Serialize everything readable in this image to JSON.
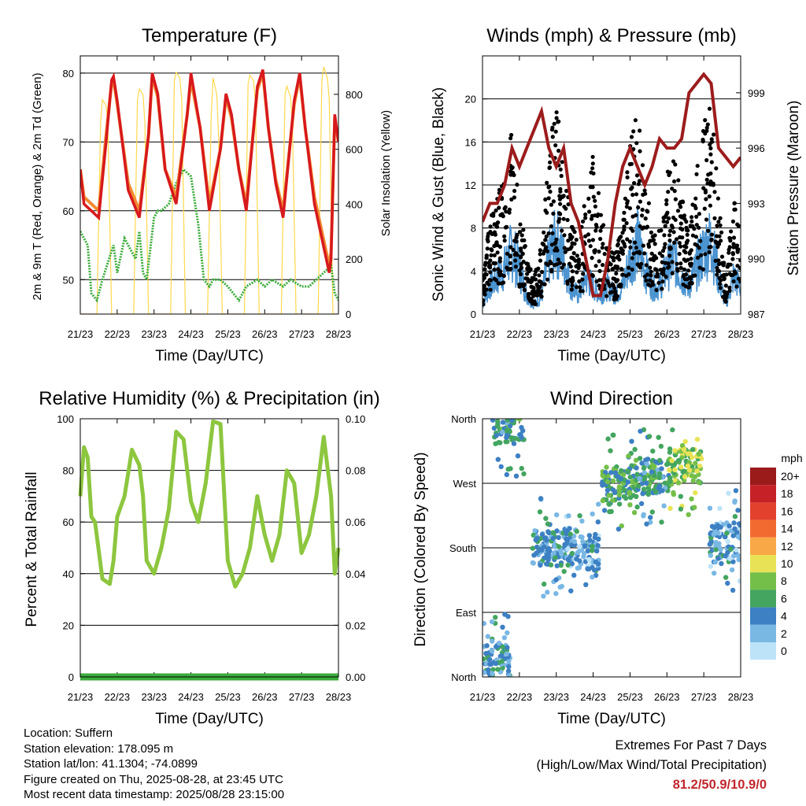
{
  "chart_data": [
    {
      "type": "line",
      "title": "Temperature (F)",
      "xlabel": "Time (Day/UTC)",
      "ylabel": "2m & 9m T (Red, Orange) & 2m Td (Green)",
      "y2label": "Solar Insolation (Yellow)",
      "x_ticks": [
        "21/23",
        "22/23",
        "23/23",
        "24/23",
        "25/23",
        "26/23",
        "27/23",
        "28/23"
      ],
      "ylim": [
        45,
        82.5
      ],
      "y_ticks": [
        50,
        60,
        70,
        80
      ],
      "y2lim": [
        0,
        940
      ],
      "y2_ticks": [
        0,
        200,
        400,
        600,
        800
      ],
      "grid": "horizontal",
      "series": [
        {
          "name": "2m T",
          "color": "#d7191c",
          "x": [
            0,
            0.1,
            0.3,
            0.5,
            0.7,
            0.85,
            0.9,
            1.0,
            1.3,
            1.6,
            1.85,
            1.95,
            2.1,
            2.3,
            2.6,
            2.9,
            3.0,
            3.25,
            3.5,
            3.8,
            3.95,
            4.1,
            4.3,
            4.5,
            4.8,
            4.95,
            5.1,
            5.3,
            5.5,
            5.8,
            5.95,
            6.1,
            6.35,
            6.55,
            6.75,
            6.8,
            6.9,
            7.0
          ],
          "y": [
            66,
            61,
            60,
            59,
            70,
            79,
            79.5,
            76,
            63,
            59,
            71,
            80,
            77,
            66,
            61,
            74,
            80,
            72,
            60,
            69,
            77,
            74,
            66,
            60,
            78,
            80.5,
            72,
            64,
            59,
            76,
            80,
            72,
            61,
            56,
            51,
            53,
            74,
            70
          ]
        },
        {
          "name": "9m T",
          "color": "#fdae61",
          "x": [
            0,
            0.1,
            0.3,
            0.5,
            0.7,
            0.85,
            0.9,
            1.0,
            1.3,
            1.6,
            1.85,
            1.95,
            2.1,
            2.3,
            2.6,
            2.9,
            3.0,
            3.25,
            3.5,
            3.8,
            3.95,
            4.1,
            4.3,
            4.5,
            4.8,
            4.95,
            5.1,
            5.3,
            5.5,
            5.8,
            5.95,
            6.1,
            6.35,
            6.55,
            6.75,
            6.8,
            6.9,
            7.0
          ],
          "y": [
            66,
            62,
            61,
            60,
            71,
            78.5,
            79,
            75.5,
            64,
            60,
            71,
            79.5,
            76.5,
            66,
            62,
            74,
            79,
            72,
            61,
            69,
            76.5,
            73.5,
            66,
            61,
            77.5,
            80,
            72,
            64.5,
            60,
            75.5,
            79.5,
            72,
            62,
            57,
            52,
            54,
            73.5,
            70
          ]
        },
        {
          "name": "2m Td",
          "color": "#3cab3c",
          "x": [
            0,
            0.2,
            0.3,
            0.45,
            0.6,
            0.9,
            1.0,
            1.2,
            1.5,
            1.6,
            1.7,
            1.8,
            2.0,
            2.1,
            2.2,
            2.4,
            2.6,
            2.8,
            3.0,
            3.2,
            3.35,
            3.5,
            3.6,
            3.8,
            4.0,
            4.3,
            4.5,
            4.8,
            5.0,
            5.2,
            5.5,
            5.7,
            6.0,
            6.2,
            6.4,
            6.6,
            6.8,
            6.9,
            7.0
          ],
          "y": [
            57,
            55,
            48,
            47,
            50,
            55,
            51,
            56,
            53,
            57,
            51,
            50,
            59,
            60,
            60,
            61,
            64,
            66,
            65,
            58,
            50,
            49,
            50,
            50,
            49,
            47,
            49,
            50,
            49,
            50,
            49,
            50,
            49,
            49,
            50,
            51,
            52,
            48,
            47
          ]
        },
        {
          "name": "Solar Insolation",
          "color": "#ffd84d",
          "axis": "y2",
          "x": [
            0,
            0.45,
            0.55,
            0.6,
            0.7,
            0.75,
            0.85,
            1.45,
            1.55,
            1.6,
            1.7,
            1.75,
            1.85,
            2.45,
            2.55,
            2.6,
            2.7,
            2.75,
            2.85,
            3.45,
            3.55,
            3.6,
            3.7,
            3.75,
            3.85,
            4.45,
            4.55,
            4.6,
            4.7,
            4.75,
            4.85,
            5.45,
            5.55,
            5.6,
            5.7,
            5.75,
            5.85,
            6.45,
            6.55,
            6.6,
            6.7,
            6.75,
            6.85,
            7.0
          ],
          "y": [
            0,
            0,
            700,
            780,
            760,
            680,
            0,
            0,
            780,
            820,
            800,
            700,
            0,
            0,
            850,
            880,
            860,
            780,
            0,
            0,
            720,
            860,
            800,
            650,
            0,
            0,
            840,
            870,
            850,
            760,
            0,
            0,
            800,
            830,
            790,
            700,
            0,
            0,
            850,
            900,
            860,
            780,
            0,
            0
          ]
        }
      ]
    },
    {
      "type": "line",
      "title": "Winds (mph) & Pressure (mb)",
      "xlabel": "Time (Day/UTC)",
      "ylabel": "Sonic Wind & Gust (Blue, Black)",
      "y2label": "Station Pressure (Maroon)",
      "x_ticks": [
        "21/23",
        "22/23",
        "23/23",
        "24/23",
        "25/23",
        "26/23",
        "27/23",
        "28/23"
      ],
      "ylim": [
        0,
        24
      ],
      "y_ticks": [
        0,
        4,
        8,
        12,
        16,
        20
      ],
      "y2lim": [
        987,
        1001
      ],
      "y2_ticks": [
        987,
        990,
        993,
        996,
        999
      ],
      "grid": "horizontal",
      "series": [
        {
          "name": "Sonic Wind",
          "color": "#4b94d0",
          "x": [
            0,
            0.2,
            0.4,
            0.6,
            0.8,
            1.0,
            1.2,
            1.4,
            1.6,
            1.8,
            2.0,
            2.2,
            2.4,
            2.6,
            2.8,
            3.0,
            3.2,
            3.4,
            3.6,
            3.8,
            4.0,
            4.2,
            4.4,
            4.6,
            4.8,
            5.0,
            5.2,
            5.4,
            5.6,
            5.8,
            6.0,
            6.2,
            6.4,
            6.6,
            6.8,
            7.0
          ],
          "y": [
            1,
            3,
            4,
            5,
            7,
            5,
            2,
            1,
            2,
            6,
            8,
            6,
            3,
            2,
            4,
            3,
            2,
            3,
            2,
            3,
            6,
            8,
            5,
            3,
            3,
            5,
            6,
            4,
            3,
            5,
            7,
            8,
            4,
            1,
            4,
            3
          ]
        },
        {
          "name": "Gust",
          "color": "#000000",
          "x": [
            0,
            0.2,
            0.4,
            0.6,
            0.8,
            1.0,
            1.2,
            1.4,
            1.6,
            1.8,
            2.0,
            2.2,
            2.4,
            2.6,
            2.8,
            3.0,
            3.2,
            3.4,
            3.6,
            3.8,
            4.0,
            4.2,
            4.4,
            4.6,
            4.8,
            5.0,
            5.2,
            5.4,
            5.6,
            5.8,
            6.0,
            6.2,
            6.4,
            6.6,
            6.8,
            7.0
          ],
          "y": [
            3,
            8,
            10,
            12,
            16,
            10,
            5,
            3,
            6,
            14,
            18,
            13,
            8,
            6,
            10,
            14,
            9,
            6,
            5,
            8,
            15,
            17,
            12,
            8,
            7,
            12,
            14,
            10,
            8,
            12,
            17,
            18,
            10,
            3,
            10,
            8
          ]
        },
        {
          "name": "Station Pressure",
          "color": "#9c1c1c",
          "axis": "y2",
          "x": [
            0,
            0.2,
            0.4,
            0.6,
            0.8,
            1.0,
            1.2,
            1.4,
            1.6,
            1.8,
            2.0,
            2.2,
            2.4,
            2.6,
            2.8,
            3.0,
            3.2,
            3.4,
            3.6,
            3.8,
            4.0,
            4.2,
            4.4,
            4.6,
            4.8,
            5.0,
            5.2,
            5.4,
            5.6,
            5.8,
            6.0,
            6.2,
            6.4,
            6.6,
            6.8,
            7.0
          ],
          "y": [
            992,
            993,
            993,
            994,
            996,
            995,
            996,
            997,
            998,
            996,
            995,
            996,
            993,
            992,
            990,
            988,
            988,
            990,
            993,
            995,
            996,
            995,
            994,
            995,
            996.5,
            996,
            996,
            996.5,
            999,
            999.5,
            1000,
            999.5,
            996,
            995.5,
            995,
            995.5
          ]
        }
      ]
    },
    {
      "type": "line",
      "title": "Relative Humidity (%) & Precipitation (in)",
      "xlabel": "Time (Day/UTC)",
      "ylabel": "Percent & Total Rainfall",
      "x_ticks": [
        "21/23",
        "22/23",
        "23/23",
        "24/23",
        "25/23",
        "26/23",
        "27/23",
        "28/23"
      ],
      "ylim": [
        0,
        100
      ],
      "y_ticks": [
        0,
        20,
        40,
        60,
        80,
        100
      ],
      "y2lim": [
        0,
        0.1
      ],
      "y2_ticks": [
        "0.00",
        "0.02",
        "0.04",
        "0.06",
        "0.08",
        "0.10"
      ],
      "grid": "horizontal",
      "series": [
        {
          "name": "Relative Humidity",
          "color": "#8dc63f",
          "x": [
            0,
            0.1,
            0.2,
            0.3,
            0.4,
            0.6,
            0.8,
            0.9,
            1.0,
            1.2,
            1.4,
            1.6,
            1.7,
            1.8,
            2.0,
            2.2,
            2.4,
            2.6,
            2.8,
            3.0,
            3.2,
            3.4,
            3.6,
            3.8,
            4.0,
            4.2,
            4.4,
            4.6,
            4.8,
            5.0,
            5.2,
            5.4,
            5.6,
            5.8,
            6.0,
            6.2,
            6.4,
            6.6,
            6.8,
            6.9,
            7.0
          ],
          "y": [
            70,
            89,
            85,
            62,
            60,
            38,
            36,
            45,
            62,
            70,
            88,
            82,
            70,
            45,
            40,
            50,
            65,
            95,
            92,
            68,
            60,
            75,
            99,
            98,
            45,
            35,
            40,
            50,
            70,
            55,
            45,
            55,
            80,
            75,
            48,
            55,
            70,
            93,
            70,
            40,
            50
          ]
        },
        {
          "name": "Total Precipitation",
          "color": "#3cab3c",
          "axis": "y2",
          "x": [
            0,
            7
          ],
          "y": [
            0,
            0
          ]
        }
      ]
    },
    {
      "type": "scatter",
      "title": "Wind Direction",
      "xlabel": "Time (Day/UTC)",
      "ylabel": "Direction (Colored By Speed)",
      "x_ticks": [
        "21/23",
        "22/23",
        "23/23",
        "24/23",
        "25/23",
        "26/23",
        "27/23",
        "28/23"
      ],
      "ylim": [
        0,
        360
      ],
      "y_ticks": [
        "North",
        "East",
        "South",
        "West",
        "North"
      ],
      "grid": "horizontal",
      "colorbar": {
        "title": "mph",
        "labels": [
          "20+",
          "18",
          "16",
          "14",
          "12",
          "10",
          "8",
          "6",
          "4",
          "2",
          "0"
        ],
        "colors": [
          "#9b1a1a",
          "#c62127",
          "#e2412e",
          "#f26a30",
          "#f9a848",
          "#e8e356",
          "#74bf4a",
          "#43a560",
          "#3d80c3",
          "#7ab8e4",
          "#bde3f8"
        ]
      },
      "clusters": [
        {
          "x": 0.3,
          "y": 20,
          "speed": 4
        },
        {
          "x": 0.7,
          "y": 350,
          "speed": 5
        },
        {
          "x": 1.8,
          "y": 180,
          "speed": 4
        },
        {
          "x": 2.7,
          "y": 175,
          "speed": 3
        },
        {
          "x": 3.7,
          "y": 270,
          "speed": 6
        },
        {
          "x": 4.6,
          "y": 280,
          "speed": 5
        },
        {
          "x": 5.5,
          "y": 295,
          "speed": 8
        },
        {
          "x": 6.6,
          "y": 190,
          "speed": 3
        }
      ]
    }
  ],
  "footer": {
    "lines": [
      "Location: Suffern",
      "Station elevation: 178.095 m",
      "Station lat/lon: 41.1304; -74.0899",
      "Figure created on Thu, 2025-08-28, at 23:45 UTC",
      "Most recent data timestamp: 2025/08/28 23:15:00"
    ],
    "extremes_title": "Extremes For Past 7 Days",
    "extremes_subtitle": "(High/Low/Max Wind/Total Precipitation)",
    "extremes_values": "81.2/50.9/10.9/0"
  }
}
